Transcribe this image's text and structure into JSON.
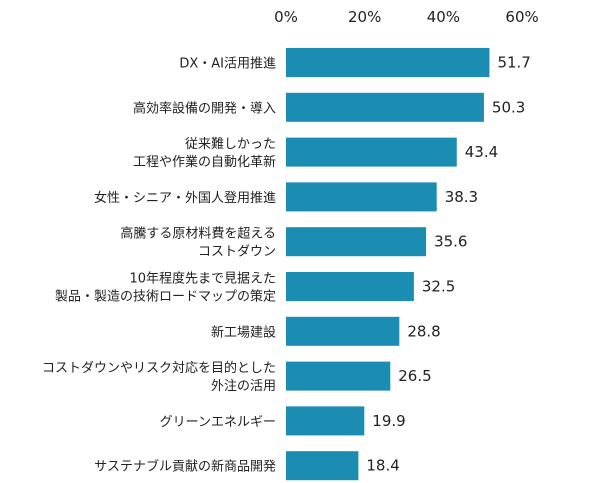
{
  "chart_data": {
    "type": "bar",
    "orientation": "horizontal",
    "title": "",
    "xlabel": "",
    "ylabel": "",
    "xlim": [
      0,
      60
    ],
    "x_ticks": [
      "0%",
      "20%",
      "40%",
      "60%"
    ],
    "x_tick_values": [
      0,
      20,
      40,
      60
    ],
    "x_axis_position": "top",
    "grid": false,
    "legend": "none",
    "bar_color": "#1B8DB3",
    "categories": [
      [
        "DX・AI活用推進"
      ],
      [
        "高効率設備の開発・導入"
      ],
      [
        "従来難しかった",
        "工程や作業の自動化革新"
      ],
      [
        "女性・シニア・外国人登用推進"
      ],
      [
        "高騰する原材料費を超える",
        "コストダウン"
      ],
      [
        "10年程度先まで見据えた",
        "製品・製造の技術ロードマップの策定"
      ],
      [
        "新工場建設"
      ],
      [
        "コストダウンやリスク対応を目的とした",
        "外注の活用"
      ],
      [
        "グリーンエネルギー"
      ],
      [
        "サステナブル貢献の新商品開発"
      ]
    ],
    "values": [
      51.7,
      50.3,
      43.4,
      38.3,
      35.6,
      32.5,
      28.8,
      26.5,
      19.9,
      18.4
    ],
    "value_labels": [
      "51.7",
      "50.3",
      "43.4",
      "38.3",
      "35.6",
      "32.5",
      "28.8",
      "26.5",
      "19.9",
      "18.4"
    ]
  }
}
